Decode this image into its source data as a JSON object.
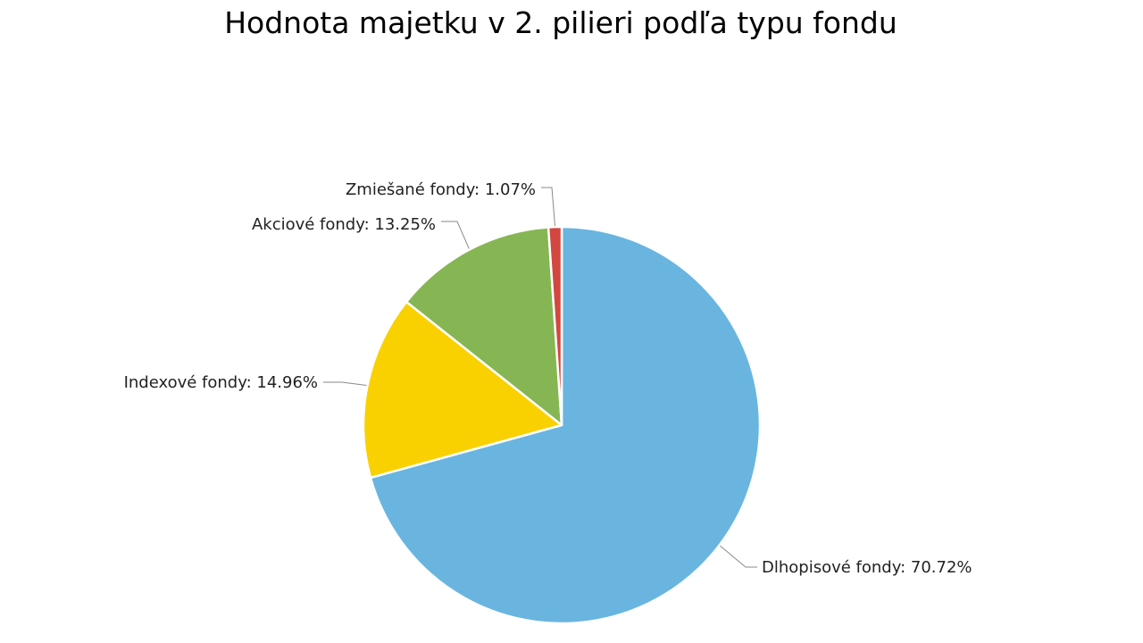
{
  "chart_data": {
    "type": "pie",
    "title": "Hodnota majetku v 2. pilieri podľa typu fondu",
    "slices": [
      {
        "label": "Dlhopisové fondy: 70.72%",
        "value": 70.72,
        "color": "#69b5e0"
      },
      {
        "label": "Indexové fondy: 14.96%",
        "value": 14.96,
        "color": "#f9d100"
      },
      {
        "label": "Akciové fondy: 13.25%",
        "value": 13.25,
        "color": "#86b654"
      },
      {
        "label": "Zmiešané fondy: 1.07%",
        "value": 1.07,
        "color": "#d2473f"
      }
    ],
    "start_angle": "12 o'clock",
    "direction": "clockwise",
    "legend": "none"
  }
}
